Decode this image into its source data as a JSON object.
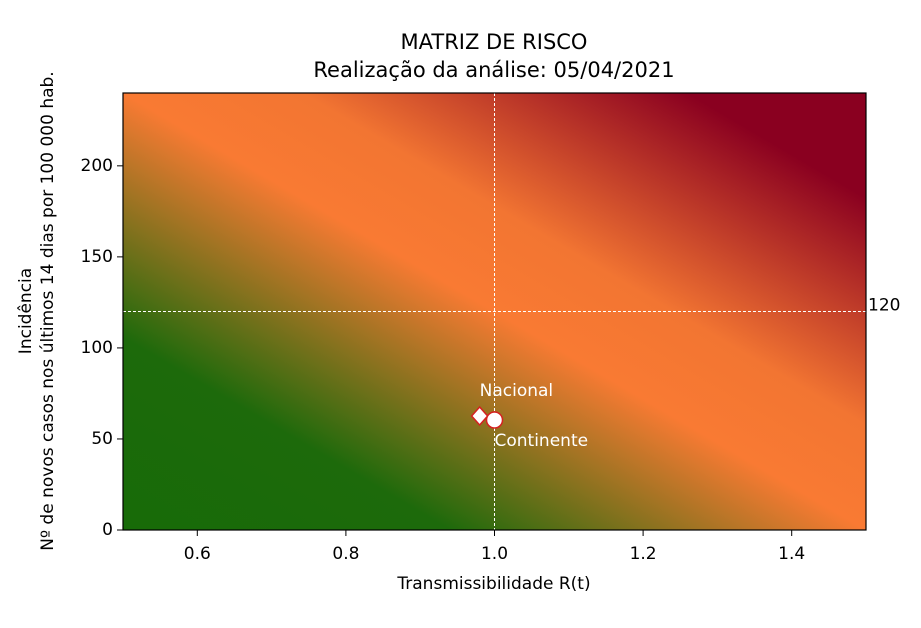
{
  "chart_data": {
    "type": "scatter",
    "title": [
      "MATRIZ DE RISCO",
      "Realização da análise: 05/04/2021"
    ],
    "x_label": "Transmissibilidade R(t)",
    "y_label": [
      "Incidência",
      "Nº de novos casos nos últimos 14 dias por 100 000 hab."
    ],
    "xlim": [
      0.5,
      1.5
    ],
    "ylim": [
      0,
      240
    ],
    "xticks": [
      0.6,
      0.8,
      {
        "value": 1,
        "label": "1.0"
      },
      1.2,
      1.4
    ],
    "yticks": [
      0,
      50,
      100,
      150,
      200
    ],
    "vlines": [
      1
    ],
    "hlines": [
      120
    ],
    "series": [
      {
        "name": "Nacional",
        "marker": "diamond",
        "color": "#d62020",
        "x": [
          0.98
        ],
        "y": [
          62.6
        ]
      },
      {
        "name": "Continente",
        "marker": "circle",
        "color": "#d62020",
        "x": [
          1.0
        ],
        "y": [
          60.4
        ]
      }
    ]
  }
}
